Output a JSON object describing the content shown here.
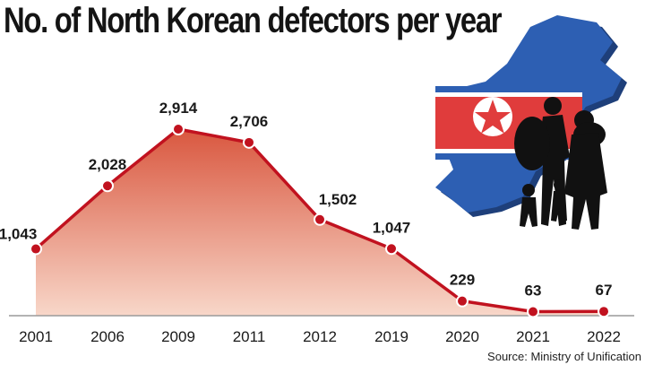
{
  "title": "No. of North Korean defectors per year",
  "source": "Source: Ministry of Unification",
  "colors": {
    "line": "#c1121f",
    "area_top": "#d9573f",
    "area_bottom": "#f8d7c9",
    "map_blue": "#2d5fb3",
    "map_shadow": "#1e3f7a",
    "flag_red": "#e03c3c",
    "silhouette": "#111111"
  },
  "icons": [
    "north-korea-map-icon",
    "north-korea-flag-icon",
    "defectors-silhouette-icon"
  ],
  "chart_data": {
    "type": "area",
    "categories": [
      "2001",
      "2006",
      "2009",
      "2011",
      "2012",
      "2019",
      "2020",
      "2021",
      "2022"
    ],
    "values": [
      1043,
      2028,
      2914,
      2706,
      1502,
      1047,
      229,
      63,
      67
    ],
    "value_labels": [
      "1,043",
      "2,028",
      "2,914",
      "2,706",
      "1,502",
      "1,047",
      "229",
      "63",
      "67"
    ],
    "title": "No. of North Korean defectors per year",
    "xlabel": "",
    "ylabel": "",
    "ylim": [
      0,
      3000
    ],
    "grid": false,
    "legend": "none"
  }
}
